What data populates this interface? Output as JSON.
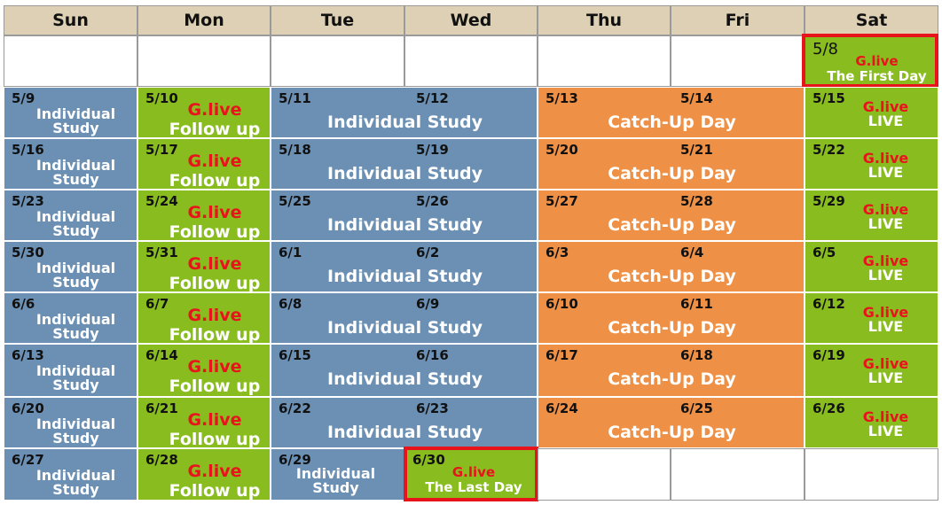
{
  "colors": {
    "header": "#ddd0b4",
    "study": "#6b90b4",
    "live": "#89bc1f",
    "catchup": "#ee9146",
    "glive_text": "#e8141c",
    "highlight": "#e8141c"
  },
  "headers": [
    "Sun",
    "Mon",
    "Tue",
    "Wed",
    "Thu",
    "Fri",
    "Sat"
  ],
  "rows": [
    {
      "dates": [
        "",
        "",
        "",
        "",
        "",
        "",
        "5/8"
      ],
      "first_row": true
    },
    {
      "dates": [
        "5/9",
        "5/10",
        "5/11",
        "5/12",
        "5/13",
        "5/14",
        "5/15"
      ]
    },
    {
      "dates": [
        "5/16",
        "5/17",
        "5/18",
        "5/19",
        "5/20",
        "5/21",
        "5/22"
      ]
    },
    {
      "dates": [
        "5/23",
        "5/24",
        "5/25",
        "5/26",
        "5/27",
        "5/28",
        "5/29"
      ]
    },
    {
      "dates": [
        "5/30",
        "5/31",
        "6/1",
        "6/2",
        "6/3",
        "6/4",
        "6/5"
      ]
    },
    {
      "dates": [
        "6/6",
        "6/7",
        "6/8",
        "6/9",
        "6/10",
        "6/11",
        "6/12"
      ]
    },
    {
      "dates": [
        "6/13",
        "6/14",
        "6/15",
        "6/16",
        "6/17",
        "6/18",
        "6/19"
      ]
    },
    {
      "dates": [
        "6/20",
        "6/21",
        "6/22",
        "6/23",
        "6/24",
        "6/25",
        "6/26"
      ]
    },
    {
      "dates": [
        "6/27",
        "6/28",
        "6/29",
        "6/30",
        "",
        "",
        ""
      ],
      "last_row": true
    }
  ],
  "labels": {
    "individual_study_line1": "Individual",
    "individual_study_line2": "Study",
    "individual_study": "Individual Study",
    "catch_up_day": "Catch-Up Day",
    "glive": "G.live",
    "follow_up": "Follow up",
    "live": "LIVE",
    "first_day": "The First Day",
    "last_day": "The Last Day"
  }
}
